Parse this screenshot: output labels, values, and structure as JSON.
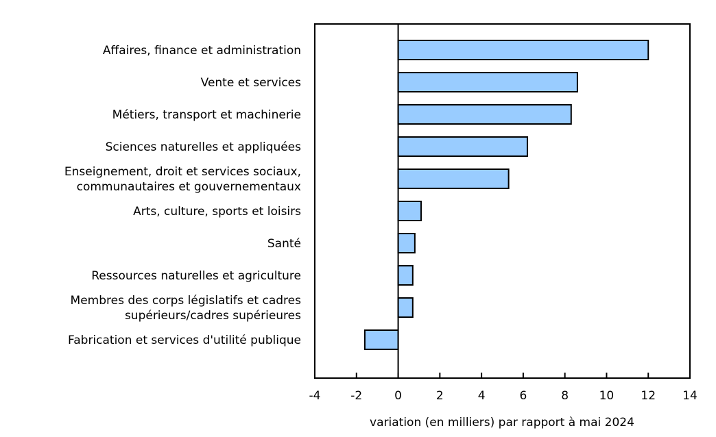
{
  "chart_data": {
    "type": "bar",
    "orientation": "horizontal",
    "categories": [
      [
        "Affaires, finance et administration"
      ],
      [
        "Vente et services"
      ],
      [
        "Métiers, transport et machinerie"
      ],
      [
        "Sciences naturelles et appliquées"
      ],
      [
        "Enseignement, droit et services sociaux,",
        "communautaires et gouvernementaux"
      ],
      [
        "Arts, culture, sports et loisirs"
      ],
      [
        "Santé"
      ],
      [
        "Ressources naturelles et agriculture"
      ],
      [
        "Membres des corps législatifs et cadres",
        "supérieurs/cadres supérieures"
      ],
      [
        "Fabrication et services d'utilité publique"
      ]
    ],
    "values": [
      12.0,
      8.6,
      8.3,
      6.2,
      5.3,
      1.1,
      0.8,
      0.7,
      0.7,
      -1.6
    ],
    "xlabel": "variation (en milliers) par rapport à mai 2024",
    "ylabel": "",
    "xlim": [
      -4,
      14
    ],
    "xticks": [
      -4,
      -2,
      0,
      2,
      4,
      6,
      8,
      10,
      12,
      14
    ],
    "grid": false,
    "bar_color": "#99ccff",
    "edge_color": "#000000"
  }
}
